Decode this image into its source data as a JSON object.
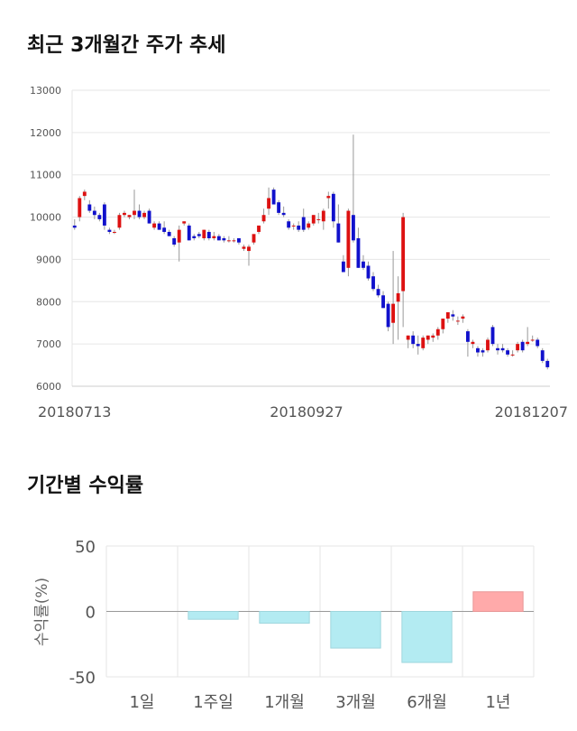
{
  "sections": {
    "price_title": "최근 3개월간 주가 추세",
    "return_title": "기간별 수익률"
  },
  "chart_data": [
    {
      "type": "candlestick",
      "y_ticks": [
        "13000",
        "12000",
        "11000",
        "10000",
        "9000",
        "8000",
        "7000",
        "6000"
      ],
      "ylim": [
        6000,
        13000
      ],
      "x_labels": [
        "20180713",
        "20180927",
        "20181207"
      ],
      "grid": true,
      "colors": {
        "up": "#dd1111",
        "down": "#1111cc",
        "wick": "#999999",
        "grid": "#e6e6e6"
      },
      "candles": [
        [
          9800,
          9950,
          9700,
          9750
        ],
        [
          10000,
          10500,
          9900,
          10450
        ],
        [
          10500,
          10650,
          10400,
          10600
        ],
        [
          10300,
          10400,
          10100,
          10150
        ],
        [
          10150,
          10250,
          9950,
          10050
        ],
        [
          10050,
          10100,
          9900,
          9950
        ],
        [
          10300,
          10350,
          9700,
          9800
        ],
        [
          9700,
          9750,
          9600,
          9650
        ],
        [
          9650,
          9700,
          9600,
          9650
        ],
        [
          9750,
          10100,
          9700,
          10050
        ],
        [
          10050,
          10150,
          10000,
          10100
        ],
        [
          10000,
          10050,
          9950,
          10050
        ],
        [
          10050,
          10650,
          9950,
          10150
        ],
        [
          10150,
          10300,
          9950,
          10000
        ],
        [
          10000,
          10150,
          9950,
          10100
        ],
        [
          10150,
          10200,
          9850,
          9850
        ],
        [
          9750,
          9900,
          9700,
          9850
        ],
        [
          9850,
          9900,
          9700,
          9700
        ],
        [
          9750,
          9900,
          9600,
          9650
        ],
        [
          9650,
          9700,
          9550,
          9550
        ],
        [
          9500,
          9550,
          9300,
          9350
        ],
        [
          9400,
          9800,
          8950,
          9700
        ],
        [
          9850,
          9900,
          9800,
          9900
        ],
        [
          9800,
          9850,
          9450,
          9450
        ],
        [
          9550,
          9600,
          9450,
          9500
        ],
        [
          9600,
          9650,
          9500,
          9550
        ],
        [
          9500,
          9700,
          9450,
          9700
        ],
        [
          9650,
          9700,
          9450,
          9500
        ],
        [
          9500,
          9650,
          9450,
          9550
        ],
        [
          9550,
          9600,
          9450,
          9450
        ],
        [
          9500,
          9550,
          9400,
          9450
        ],
        [
          9450,
          9550,
          9400,
          9450
        ],
        [
          9450,
          9500,
          9400,
          9450
        ],
        [
          9500,
          9500,
          9350,
          9400
        ],
        [
          9250,
          9350,
          9200,
          9300
        ],
        [
          9200,
          9350,
          8850,
          9300
        ],
        [
          9400,
          9550,
          9350,
          9600
        ],
        [
          9650,
          9800,
          9600,
          9800
        ],
        [
          9900,
          10200,
          9850,
          10050
        ],
        [
          10200,
          10700,
          10050,
          10450
        ],
        [
          10650,
          10700,
          10300,
          10300
        ],
        [
          10350,
          10400,
          10050,
          10100
        ],
        [
          10100,
          10250,
          10000,
          10050
        ],
        [
          9900,
          9950,
          9700,
          9750
        ],
        [
          9800,
          9850,
          9700,
          9800
        ],
        [
          9800,
          9900,
          9650,
          9700
        ],
        [
          10000,
          10200,
          9650,
          9700
        ],
        [
          9750,
          9900,
          9700,
          9850
        ],
        [
          9850,
          10050,
          9800,
          10050
        ],
        [
          9950,
          10100,
          9850,
          9950
        ],
        [
          9900,
          10200,
          9700,
          10150
        ],
        [
          10450,
          10600,
          10200,
          10500
        ],
        [
          10550,
          10600,
          9750,
          9900
        ],
        [
          9850,
          10300,
          9400,
          9400
        ],
        [
          8950,
          9100,
          8700,
          8700
        ],
        [
          8800,
          10200,
          8600,
          10150
        ],
        [
          10050,
          11950,
          9400,
          9450
        ],
        [
          9500,
          9750,
          8800,
          8800
        ],
        [
          8950,
          9100,
          8750,
          8800
        ],
        [
          8850,
          8950,
          8500,
          8550
        ],
        [
          8600,
          8700,
          8250,
          8300
        ],
        [
          8300,
          8400,
          8100,
          8150
        ],
        [
          8150,
          8250,
          7850,
          7850
        ],
        [
          7950,
          8000,
          7300,
          7400
        ],
        [
          7500,
          9200,
          7000,
          7950
        ],
        [
          8000,
          8600,
          7100,
          8200
        ],
        [
          8250,
          10100,
          7400,
          10000
        ],
        [
          7100,
          7200,
          6900,
          7200
        ],
        [
          7200,
          7300,
          6900,
          7000
        ],
        [
          7000,
          7200,
          6750,
          6950
        ],
        [
          6900,
          7200,
          6850,
          7150
        ],
        [
          7100,
          7200,
          7000,
          7200
        ],
        [
          7150,
          7250,
          7050,
          7200
        ],
        [
          7200,
          7400,
          7100,
          7350
        ],
        [
          7350,
          7600,
          7250,
          7600
        ],
        [
          7600,
          7700,
          7500,
          7750
        ],
        [
          7700,
          7800,
          7550,
          7650
        ],
        [
          7550,
          7650,
          7450,
          7550
        ],
        [
          7600,
          7700,
          7500,
          7650
        ],
        [
          7300,
          7350,
          6700,
          7050
        ],
        [
          7000,
          7100,
          6900,
          7050
        ],
        [
          6900,
          6950,
          6700,
          6800
        ],
        [
          6850,
          6900,
          6700,
          6800
        ],
        [
          6850,
          7150,
          6800,
          7100
        ],
        [
          7400,
          7450,
          6950,
          7000
        ],
        [
          6900,
          7000,
          6750,
          6850
        ],
        [
          6900,
          7000,
          6800,
          6850
        ],
        [
          6850,
          6900,
          6700,
          6750
        ],
        [
          6750,
          6850,
          6700,
          6750
        ],
        [
          6850,
          7050,
          6800,
          7000
        ],
        [
          7050,
          7100,
          6800,
          6850
        ],
        [
          7000,
          7400,
          6950,
          7050
        ],
        [
          7100,
          7200,
          7050,
          7100
        ],
        [
          7100,
          7150,
          6900,
          6950
        ],
        [
          6850,
          6900,
          6550,
          6600
        ],
        [
          6600,
          6650,
          6400,
          6450
        ]
      ]
    },
    {
      "type": "bar",
      "categories": [
        "1일",
        "1주일",
        "1개월",
        "3개월",
        "6개월",
        "1년"
      ],
      "values": [
        0,
        -6,
        -9,
        -28,
        -39,
        15
      ],
      "ylabel": "수익률(%)",
      "y_ticks": [
        "50",
        "0",
        "-50"
      ],
      "ylim": [
        -50,
        50
      ],
      "grid": true,
      "colors": {
        "negative": "#b3ebf2",
        "negative_edge": "#9fd6dd",
        "positive": "#ffaaaa",
        "positive_edge": "#e89595",
        "grid": "#e6e6e6",
        "zero": "#999999"
      }
    }
  ]
}
